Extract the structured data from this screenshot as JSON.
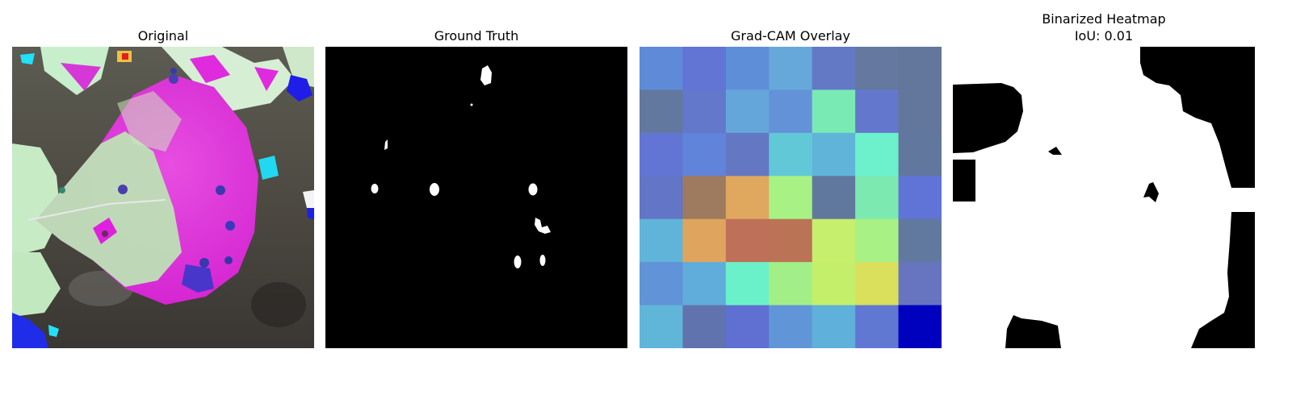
{
  "panels": [
    {
      "title": "Original"
    },
    {
      "title": "Ground Truth"
    },
    {
      "title": "Grad-CAM Overlay"
    },
    {
      "title": "Binarized Heatmap",
      "subtitle": "IoU: 0.01"
    }
  ],
  "gradcam": {
    "grid_size": 7,
    "colors": [
      [
        "#5f8ad8",
        "#6274d4",
        "#5f8ed8",
        "#67a8da",
        "#6379c6",
        "#6478a0",
        "#62779b"
      ],
      [
        "#62789f",
        "#6377cb",
        "#64a6d9",
        "#6392d9",
        "#7aeab4",
        "#6378cd",
        "#62779b"
      ],
      [
        "#6275d5",
        "#6184db",
        "#6377c3",
        "#61c8d8",
        "#61b4d9",
        "#6cf1cc",
        "#62779d"
      ],
      [
        "#6275c6",
        "#9e7a5f",
        "#e0a75f",
        "#a8f185",
        "#61789e",
        "#7ce9b0",
        "#5f74d6"
      ],
      [
        "#60b4d9",
        "#dfa45e",
        "#bf7058",
        "#ba7355",
        "#c6ef6d",
        "#a8f185",
        "#61799f"
      ],
      [
        "#6193d8",
        "#60acdb",
        "#6bf1c9",
        "#a3ef87",
        "#c4ef6b",
        "#dadf5c",
        "#6775c0"
      ],
      [
        "#60b6d8",
        "#6173ae",
        "#5f70d2",
        "#6096d7",
        "#5fb0da",
        "#6078d2",
        "#0000bf"
      ]
    ]
  }
}
